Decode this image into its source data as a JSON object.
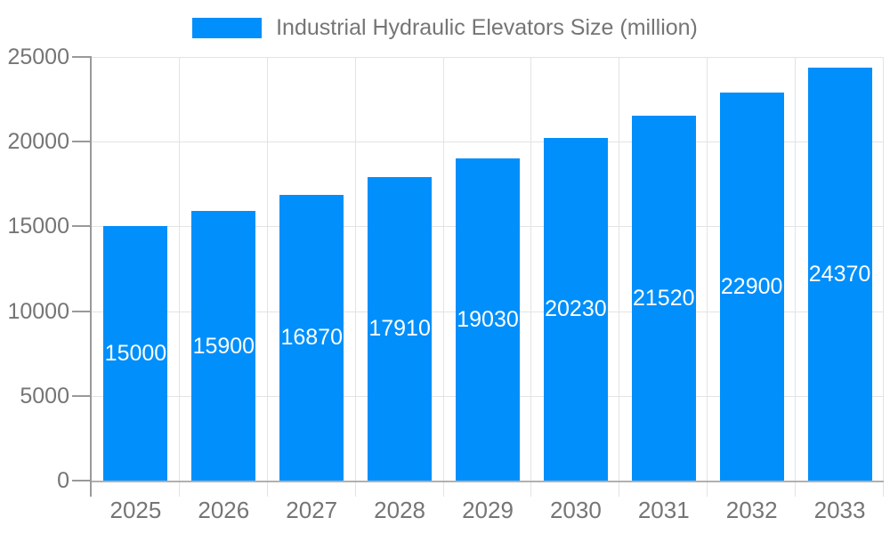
{
  "legend": {
    "label": "Industrial Hydraulic Elevators Size (million)"
  },
  "chart_data": {
    "type": "bar",
    "title": "Industrial Hydraulic Elevators Size (million)",
    "categories": [
      "2025",
      "2026",
      "2027",
      "2028",
      "2029",
      "2030",
      "2031",
      "2032",
      "2033"
    ],
    "series": [
      {
        "name": "Industrial Hydraulic Elevators Size (million)",
        "values": [
          15000,
          15900,
          16870,
          17910,
          19030,
          20230,
          21520,
          22900,
          24370
        ]
      }
    ],
    "xlabel": "",
    "ylabel": "",
    "ylim": [
      0,
      25000
    ],
    "yticks": [
      0,
      5000,
      10000,
      15000,
      20000,
      25000
    ],
    "grid": true,
    "legend_position": "top",
    "value_labels": "white, centered inside bars"
  },
  "colors": {
    "bar": "#008FFB",
    "grid_line": "#e3e3e3",
    "y_axis_line": "#999999",
    "x_axis_line": "#b0b0b0",
    "tick_label": "#757575",
    "value_label": "#ffffff",
    "background": "#ffffff"
  }
}
